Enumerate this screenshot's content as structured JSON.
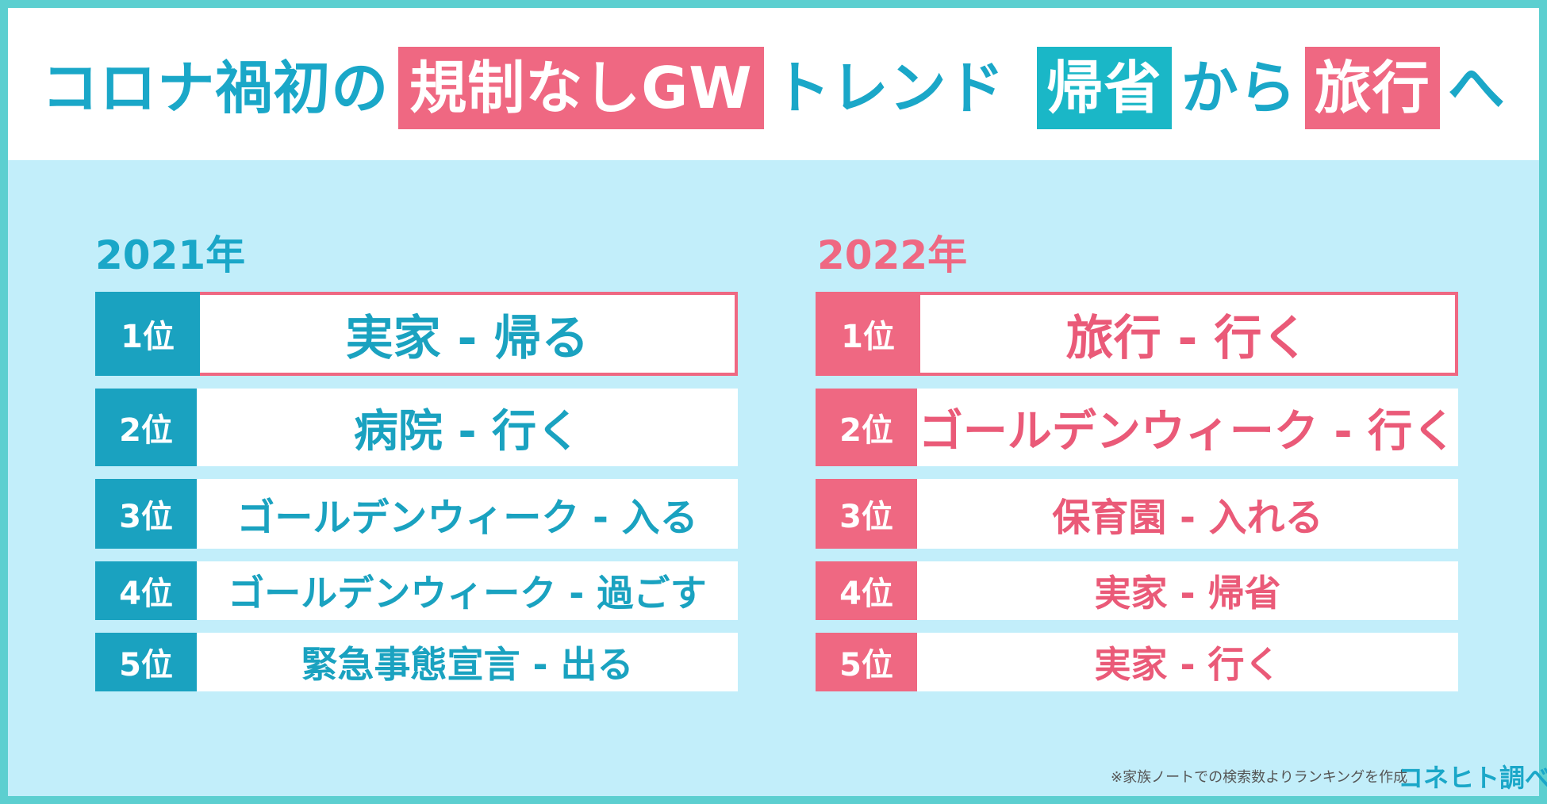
{
  "headline": {
    "part1": "コロナ禍初の",
    "highlight1": "規制なしGW",
    "part2": "トレンド",
    "highlight2": "帰省",
    "part3": "から",
    "highlight3": "旅行",
    "part4": "へ"
  },
  "rankings": {
    "left": {
      "year": "2021年",
      "items": [
        {
          "rank": "1位",
          "term": "実家 - 帰る"
        },
        {
          "rank": "2位",
          "term": "病院 - 行く"
        },
        {
          "rank": "3位",
          "term": "ゴールデンウィーク - 入る"
        },
        {
          "rank": "4位",
          "term": "ゴールデンウィーク - 過ごす"
        },
        {
          "rank": "5位",
          "term": "緊急事態宣言 - 出る"
        }
      ]
    },
    "right": {
      "year": "2022年",
      "items": [
        {
          "rank": "1位",
          "term": "旅行 - 行く"
        },
        {
          "rank": "2位",
          "term": "ゴールデンウィーク - 行く"
        },
        {
          "rank": "3位",
          "term": "保育園 - 入れる"
        },
        {
          "rank": "4位",
          "term": "実家 - 帰省"
        },
        {
          "rank": "5位",
          "term": "実家 - 行く"
        }
      ]
    }
  },
  "footer": {
    "note": "※家族ノートでの検索数よりランキングを作成",
    "brand": "コネヒト調べ"
  },
  "colors": {
    "teal": "#1aa7c8",
    "pink": "#ef6882",
    "background": "#c2eefa",
    "border": "#5ccfd0"
  }
}
